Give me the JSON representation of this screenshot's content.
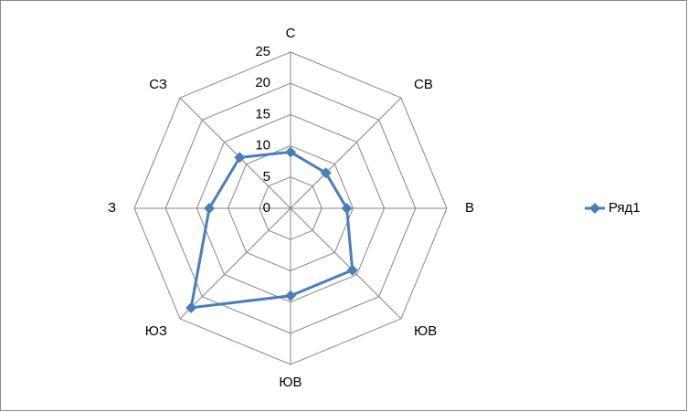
{
  "chart_data": {
    "type": "radar",
    "categories": [
      "С",
      "СВ",
      "В",
      "ЮВ",
      "ЮВ",
      "ЮЗ",
      "З",
      "СЗ"
    ],
    "series": [
      {
        "name": "Ряд1",
        "color": "#4a7ebb",
        "values": [
          9,
          8,
          9,
          14,
          14,
          22.5,
          13,
          11.5
        ]
      }
    ],
    "ylim": [
      0,
      25
    ],
    "yticks": [
      0,
      5,
      10,
      15,
      20,
      25
    ],
    "grid": true,
    "legend": "right"
  }
}
